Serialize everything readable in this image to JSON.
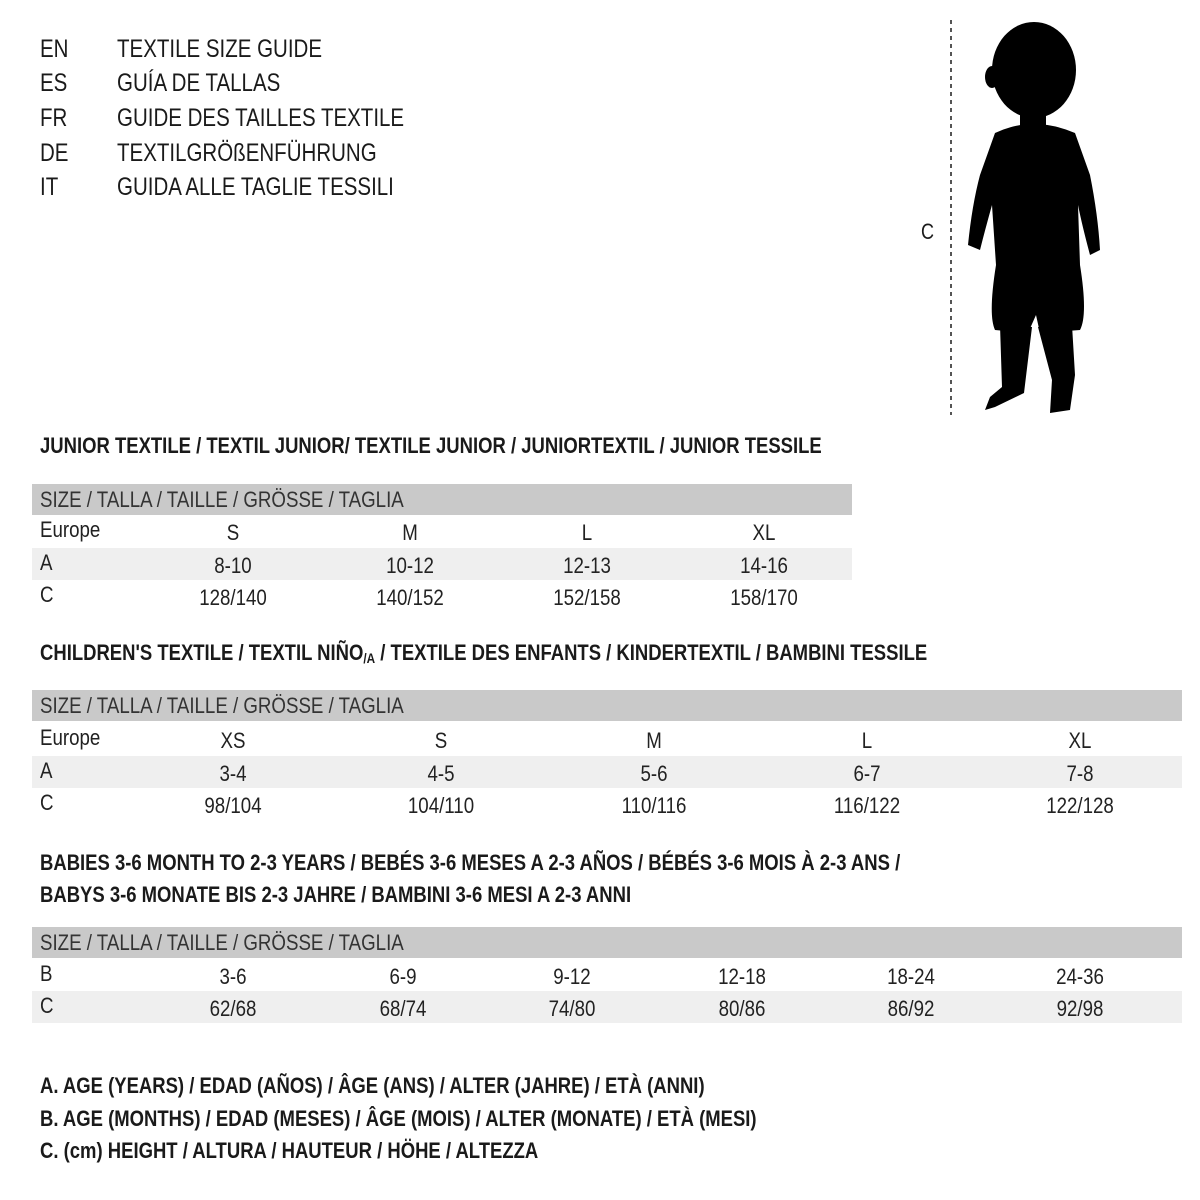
{
  "languages": [
    {
      "code": "EN",
      "title": "TEXTILE SIZE GUIDE"
    },
    {
      "code": "ES",
      "title": "GUÍA DE TALLAS"
    },
    {
      "code": "FR",
      "title": "GUIDE DES TAILLES TEXTILE"
    },
    {
      "code": "DE",
      "title": "TEXTILGRÖßENFÜHRUNG"
    },
    {
      "code": "IT",
      "title": "GUIDA ALLE TAGLIE TESSILI"
    }
  ],
  "figure": {
    "measure_label": "C",
    "icon": "child-silhouette"
  },
  "sections": [
    {
      "heading": [
        "JUNIOR TEXTILE / TEXTIL JUNIOR/ TEXTILE JUNIOR / JUNIORTEXTIL / JUNIOR TESSILE"
      ],
      "size_header": "SIZE / TALLA / TAILLE / GRÖSSE / TAGLIA",
      "rows": [
        {
          "label": "Europe",
          "values": [
            "S",
            "M",
            "L",
            "XL"
          ]
        },
        {
          "label": "A",
          "values": [
            "8-10",
            "10-12",
            "12-13",
            "14-16"
          ]
        },
        {
          "label": "C",
          "values": [
            "128/140",
            "140/152",
            "152/158",
            "158/170"
          ]
        }
      ]
    },
    {
      "heading": [
        "CHILDREN'S TEXTILE / TEXTIL NIÑO",
        "/A",
        " / TEXTILE DES ENFANTS / KINDERTEXTIL / BAMBINI TESSILE"
      ],
      "size_header": "SIZE / TALLA / TAILLE / GRÖSSE / TAGLIA",
      "rows": [
        {
          "label": "Europe",
          "values": [
            "XS",
            "S",
            "M",
            "L",
            "XL"
          ]
        },
        {
          "label": "A",
          "values": [
            "3-4",
            "4-5",
            "5-6",
            "6-7",
            "7-8"
          ]
        },
        {
          "label": "C",
          "values": [
            "98/104",
            "104/110",
            "110/116",
            "116/122",
            "122/128"
          ]
        }
      ]
    },
    {
      "heading": [
        "BABIES 3-6 MONTH TO 2-3 YEARS / BEBÉS 3-6 MESES A 2-3 AÑOS / BÉBÉS 3-6 MOIS À 2-3 ANS /",
        "BABYS 3-6 MONATE BIS 2-3 JAHRE / BAMBINI 3-6 MESI A 2-3 ANNI"
      ],
      "size_header": "SIZE / TALLA / TAILLE / GRÖSSE / TAGLIA",
      "rows": [
        {
          "label": "B",
          "values": [
            "3-6",
            "6-9",
            "9-12",
            "12-18",
            "18-24",
            "24-36"
          ]
        },
        {
          "label": "C",
          "values": [
            "62/68",
            "68/74",
            "74/80",
            "80/86",
            "86/92",
            "92/98"
          ]
        }
      ]
    }
  ],
  "legend": [
    "A. AGE (YEARS) / EDAD (AÑOS) / ÂGE (ANS) / ALTER (JAHRE) / ETÀ (ANNI)",
    "B. AGE (MONTHS) / EDAD (MESES) / ÂGE (MOIS) / ALTER (MONATE) / ETÀ (MESI)",
    "C. (cm) HEIGHT / ALTURA / HAUTEUR / HÖHE / ALTEZZA"
  ]
}
